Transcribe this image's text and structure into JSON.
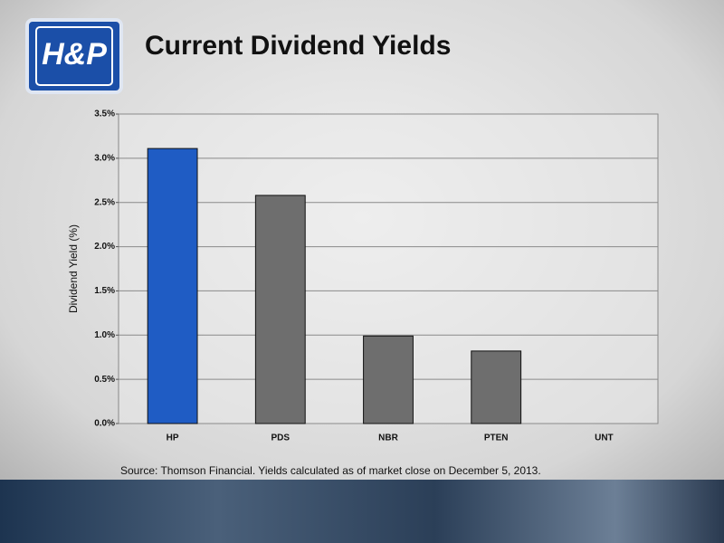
{
  "logo": "H&P",
  "chart_data": {
    "type": "bar",
    "title": "Current Dividend Yields",
    "y_label": "Dividend Yield (%)",
    "categories": [
      "HP",
      "PDS",
      "NBR",
      "PTEN",
      "UNT"
    ],
    "values": [
      3.11,
      2.58,
      0.99,
      0.82,
      0
    ],
    "colors": [
      "#1f5cc4",
      "#6e6e6e",
      "#6e6e6e",
      "#6e6e6e",
      "#6e6e6e"
    ],
    "ylim": [
      0,
      3.5
    ],
    "yticks": [
      {
        "value": 0,
        "label": "0.0%"
      },
      {
        "value": 0.5,
        "label": "0.5%"
      },
      {
        "value": 1,
        "label": "1.0%"
      },
      {
        "value": 1.5,
        "label": "1.5%"
      },
      {
        "value": 2,
        "label": "2.0%"
      },
      {
        "value": 2.5,
        "label": "2.5%"
      },
      {
        "value": 3,
        "label": "3.0%"
      },
      {
        "value": 3.5,
        "label": "3.5%"
      }
    ],
    "grid": true,
    "source": "Source: Thomson Financial.  Yields calculated as of market close on December 5, 2013."
  }
}
